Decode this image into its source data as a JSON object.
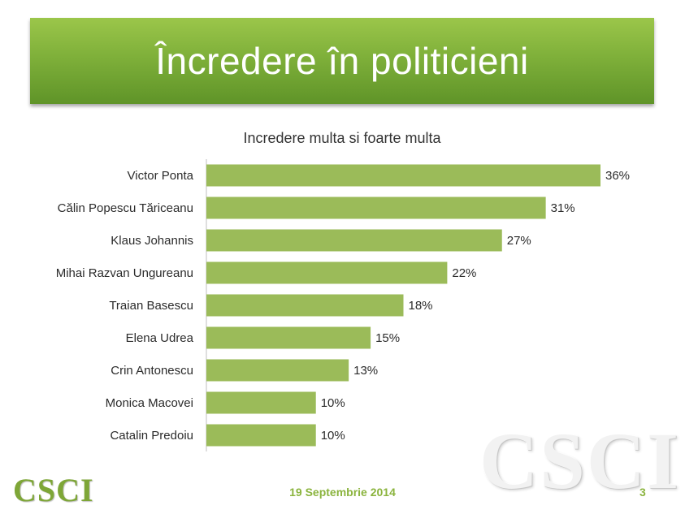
{
  "slide": {
    "title": "Încredere în politicieni",
    "footer_date": "19 Septembrie 2014",
    "page_number": "3",
    "logo_text": "CSCI",
    "watermark_text": "CSCI",
    "bar_color": "#9bbb59",
    "accent_color": "#8bb43e"
  },
  "chart_data": {
    "type": "bar",
    "orientation": "horizontal",
    "title": "Incredere multa si foarte multa",
    "categories": [
      "Victor Ponta",
      "Călin Popescu Tăriceanu",
      "Klaus Johannis",
      "Mihai Razvan Ungureanu",
      "Traian Basescu",
      "Elena Udrea",
      "Crin Antonescu",
      "Monica Macovei",
      "Catalin Predoiu"
    ],
    "values": [
      36,
      31,
      27,
      22,
      18,
      15,
      13,
      10,
      10
    ],
    "value_labels": [
      "36%",
      "31%",
      "27%",
      "22%",
      "18%",
      "15%",
      "13%",
      "10%",
      "10%"
    ],
    "xlim": [
      0,
      40
    ],
    "grid": false,
    "legend": "none"
  }
}
